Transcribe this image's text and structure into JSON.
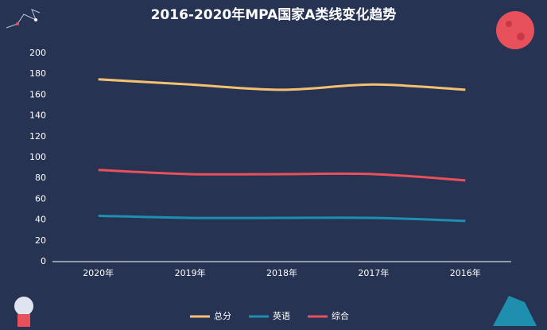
{
  "chart_data": {
    "type": "line",
    "title": "2016-2020年MPA国家A类线变化趋势",
    "categories": [
      "2020年",
      "2019年",
      "2018年",
      "2017年",
      "2016年"
    ],
    "series": [
      {
        "name": "总分",
        "color": "#f5c06f",
        "values": [
          175,
          170,
          165,
          170,
          165
        ]
      },
      {
        "name": "英语",
        "color": "#1e8fae",
        "values": [
          44,
          42,
          42,
          42,
          39
        ]
      },
      {
        "name": "综合",
        "color": "#e8505b",
        "values": [
          88,
          84,
          84,
          84,
          78
        ]
      }
    ],
    "ylim": [
      0,
      200
    ],
    "yticks": [
      0,
      20,
      40,
      60,
      80,
      100,
      120,
      140,
      160,
      180,
      200
    ],
    "grid": false
  }
}
